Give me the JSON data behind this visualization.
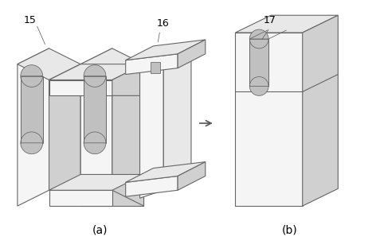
{
  "bg_color": "#ffffff",
  "line_color": "#666666",
  "fill_light": "#f5f5f5",
  "fill_mid": "#e8e8e8",
  "fill_dark": "#d0d0d0",
  "fill_slot": "#c0c0c0",
  "label_15": "15",
  "label_16": "16",
  "label_17": "17",
  "label_a": "(a)",
  "label_b": "(b)",
  "lw": 0.8,
  "fontsize": 9
}
